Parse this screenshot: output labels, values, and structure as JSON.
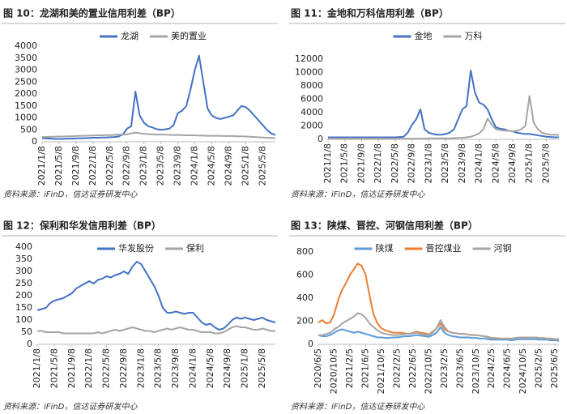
{
  "chart_data": [
    {
      "type": "line",
      "title": "图 10：龙湖和美的置业信用利差（BP）",
      "source": "资料来源：iFinD，信达证券研发中心",
      "categories": [
        "2021/1/8",
        null,
        null,
        null,
        "2021/5/8",
        null,
        null,
        null,
        "2021/9/8",
        null,
        null,
        null,
        "2022/1/8",
        null,
        null,
        null,
        "2022/5/8",
        null,
        null,
        null,
        "2022/9/8",
        null,
        null,
        null,
        "2023/1/8",
        null,
        null,
        null,
        "2023/5/8",
        null,
        null,
        null,
        "2023/9/8",
        null,
        null,
        null,
        "2024/1/8",
        null,
        null,
        null,
        "2024/5/8",
        null,
        null,
        null,
        "2024/9/8",
        null,
        null,
        null,
        "2025/1/8",
        null,
        null,
        null,
        "2025/5/8",
        null,
        null,
        null
      ],
      "series": [
        {
          "name": "龙湖",
          "color": "#4472c4",
          "values": [
            150,
            140,
            130,
            120,
            120,
            120,
            130,
            130,
            140,
            150,
            150,
            160,
            170,
            170,
            180,
            180,
            190,
            200,
            220,
            300,
            550,
            650,
            2100,
            1100,
            800,
            650,
            600,
            530,
            500,
            520,
            550,
            700,
            1200,
            1300,
            1500,
            2200,
            3000,
            3600,
            2500,
            1400,
            1100,
            1000,
            950,
            1000,
            1050,
            1100,
            1300,
            1500,
            1450,
            1300,
            1100,
            900,
            700,
            500,
            350,
            280
          ]
        },
        {
          "name": "美的置业",
          "color": "#a5a5a5",
          "values": [
            200,
            200,
            210,
            210,
            220,
            220,
            230,
            230,
            240,
            250,
            250,
            260,
            260,
            270,
            270,
            280,
            280,
            290,
            300,
            300,
            310,
            350,
            380,
            360,
            330,
            320,
            310,
            300,
            300,
            300,
            290,
            280,
            290,
            280,
            270,
            270,
            270,
            260,
            260,
            250,
            250,
            250,
            250,
            240,
            240,
            240,
            230,
            230,
            220,
            210,
            200,
            190,
            180,
            170,
            160,
            150
          ]
        }
      ],
      "ylim": [
        0,
        4000
      ],
      "yticks": [
        0,
        500,
        1000,
        1500,
        2000,
        2500,
        3000,
        3500,
        4000
      ],
      "grid": false
    },
    {
      "type": "line",
      "title": "图 11：金地和万科信用利差（BP）",
      "source": "资料来源：iFinD，信达证券研发中心",
      "categories": [
        "2021/1/8",
        null,
        null,
        null,
        "2021/5/8",
        null,
        null,
        null,
        "2021/9/8",
        null,
        null,
        null,
        "2022/1/8",
        null,
        null,
        null,
        "2022/5/8",
        null,
        null,
        null,
        "2022/9/8",
        null,
        null,
        null,
        "2023/1/8",
        null,
        null,
        null,
        "2023/5/8",
        null,
        null,
        null,
        "2023/9/8",
        null,
        null,
        null,
        "2024/1/8",
        null,
        null,
        null,
        "2024/5/8",
        null,
        null,
        null,
        "2024/9/8",
        null,
        null,
        null,
        "2025/1/8",
        null,
        null,
        null,
        "2025/5/8",
        null,
        null,
        null
      ],
      "series": [
        {
          "name": "金地",
          "color": "#4472c4",
          "values": [
            300,
            300,
            300,
            300,
            300,
            300,
            300,
            300,
            300,
            300,
            300,
            300,
            300,
            300,
            300,
            300,
            300,
            350,
            400,
            1000,
            2200,
            3000,
            4500,
            1500,
            1000,
            800,
            700,
            700,
            800,
            1000,
            1500,
            3000,
            4500,
            5000,
            10300,
            7000,
            5500,
            5200,
            4500,
            3000,
            1800,
            1600,
            1500,
            1300,
            1200,
            1000,
            900,
            800,
            800,
            700,
            600,
            500,
            400,
            350,
            300,
            300
          ]
        },
        {
          "name": "万科",
          "color": "#a5a5a5",
          "values": [
            100,
            100,
            100,
            100,
            100,
            100,
            100,
            100,
            100,
            100,
            100,
            100,
            100,
            100,
            100,
            100,
            100,
            100,
            100,
            100,
            100,
            100,
            100,
            100,
            150,
            150,
            150,
            150,
            150,
            150,
            200,
            200,
            250,
            300,
            400,
            600,
            900,
            1500,
            3100,
            2200,
            1500,
            1400,
            1300,
            1300,
            1200,
            1300,
            1500,
            2000,
            6500,
            2500,
            1500,
            1000,
            800,
            700,
            700,
            650
          ]
        }
      ],
      "ylim": [
        0,
        12000
      ],
      "yticks": [
        0,
        2000,
        4000,
        6000,
        8000,
        10000,
        12000
      ],
      "grid": false
    },
    {
      "type": "line",
      "title": "图 12：保利和华发信用利差（BP）",
      "source": "资料来源：iFinD，信达证券研发中心",
      "categories": [
        "2021/1/8",
        null,
        null,
        null,
        "2021/5/8",
        null,
        null,
        null,
        "2021/9/8",
        null,
        null,
        null,
        "2022/1/8",
        null,
        null,
        null,
        "2022/5/8",
        null,
        null,
        null,
        "2022/9/8",
        null,
        null,
        null,
        "2023/1/8",
        null,
        null,
        null,
        "2023/5/8",
        null,
        null,
        null,
        "2023/9/8",
        null,
        null,
        null,
        "2024/1/8",
        null,
        null,
        null,
        "2024/5/8",
        null,
        null,
        null,
        "2024/9/8",
        null,
        null,
        null,
        "2025/1/8",
        null,
        null,
        null,
        "2025/5/8",
        null,
        null,
        null
      ],
      "series": [
        {
          "name": "华发股份",
          "color": "#4472c4",
          "values": [
            140,
            145,
            150,
            170,
            180,
            185,
            190,
            200,
            210,
            230,
            240,
            250,
            260,
            250,
            265,
            270,
            280,
            275,
            285,
            290,
            300,
            290,
            320,
            340,
            330,
            300,
            270,
            240,
            200,
            150,
            130,
            130,
            135,
            130,
            125,
            130,
            130,
            110,
            90,
            80,
            85,
            70,
            60,
            65,
            80,
            100,
            110,
            105,
            110,
            105,
            100,
            105,
            110,
            100,
            95,
            90
          ]
        },
        {
          "name": "保利",
          "color": "#a5a5a5",
          "values": [
            55,
            55,
            50,
            50,
            50,
            50,
            45,
            45,
            45,
            45,
            45,
            45,
            45,
            45,
            50,
            45,
            50,
            55,
            60,
            55,
            60,
            65,
            70,
            65,
            60,
            55,
            55,
            50,
            55,
            60,
            65,
            60,
            65,
            70,
            65,
            60,
            60,
            55,
            50,
            50,
            50,
            45,
            45,
            50,
            60,
            70,
            75,
            70,
            70,
            65,
            60,
            60,
            65,
            60,
            55,
            55
          ]
        }
      ],
      "ylim": [
        0,
        400
      ],
      "yticks": [
        0,
        50,
        100,
        150,
        200,
        250,
        300,
        350,
        400
      ],
      "grid": false
    },
    {
      "type": "line",
      "title": "图 13：陕煤、晋控、河钢信用利差（BP）",
      "source": "资料来源：iFinD，信达证券研发中心",
      "categories": [
        "2020/6/5",
        null,
        null,
        null,
        "2020/10/5",
        null,
        null,
        null,
        "2021/2/5",
        null,
        null,
        null,
        "2021/6/5",
        null,
        null,
        null,
        "2021/10/5",
        null,
        null,
        null,
        "2022/2/5",
        null,
        null,
        null,
        "2022/6/5",
        null,
        null,
        null,
        "2022/10/5",
        null,
        null,
        null,
        "2023/2/5",
        null,
        null,
        null,
        "2023/6/5",
        null,
        null,
        null,
        "2023/10/5",
        null,
        null,
        null,
        "2024/2/5",
        null,
        null,
        null,
        "2024/6/5",
        null,
        null,
        null,
        "2024/10/5",
        null,
        null,
        null,
        "2025/2/5",
        null,
        null,
        null,
        "2025/6/5",
        null
      ],
      "series": [
        {
          "name": "陕煤",
          "color": "#5b9bd5",
          "values": [
            80,
            70,
            70,
            80,
            100,
            120,
            130,
            120,
            110,
            100,
            110,
            100,
            90,
            80,
            70,
            60,
            60,
            55,
            55,
            60,
            60,
            65,
            70,
            70,
            75,
            80,
            75,
            70,
            65,
            80,
            100,
            150,
            100,
            80,
            70,
            65,
            60,
            60,
            60,
            55,
            55,
            50,
            50,
            45,
            40,
            40,
            40,
            40,
            40,
            35,
            40,
            45,
            45,
            45,
            45,
            45,
            40,
            40,
            40,
            35,
            35,
            30
          ]
        },
        {
          "name": "晋控煤业",
          "color": "#ed7d31",
          "values": [
            190,
            210,
            180,
            190,
            260,
            380,
            470,
            530,
            600,
            650,
            700,
            680,
            600,
            420,
            260,
            180,
            140,
            120,
            110,
            100,
            100,
            100,
            95,
            90,
            100,
            110,
            100,
            95,
            85,
            110,
            140,
            180,
            130,
            110,
            100,
            95,
            90,
            90,
            85,
            80,
            80,
            75,
            70,
            65,
            55,
            50,
            50,
            50,
            50,
            50,
            55,
            60,
            60,
            55,
            60,
            60,
            55,
            55,
            50,
            50,
            45,
            45
          ]
        },
        {
          "name": "河钢",
          "color": "#a5a5a5",
          "values": [
            80,
            80,
            90,
            100,
            130,
            150,
            180,
            200,
            220,
            240,
            270,
            260,
            230,
            180,
            150,
            120,
            100,
            90,
            85,
            80,
            80,
            85,
            90,
            90,
            95,
            100,
            90,
            85,
            80,
            100,
            140,
            210,
            150,
            110,
            100,
            95,
            90,
            90,
            85,
            80,
            80,
            75,
            70,
            60,
            55,
            55,
            50,
            50,
            50,
            50,
            55,
            60,
            60,
            60,
            60,
            60,
            55,
            55,
            50,
            50,
            45,
            45
          ]
        }
      ],
      "ylim": [
        0,
        800
      ],
      "yticks": [
        0,
        200,
        400,
        600,
        800
      ],
      "grid": false
    }
  ]
}
